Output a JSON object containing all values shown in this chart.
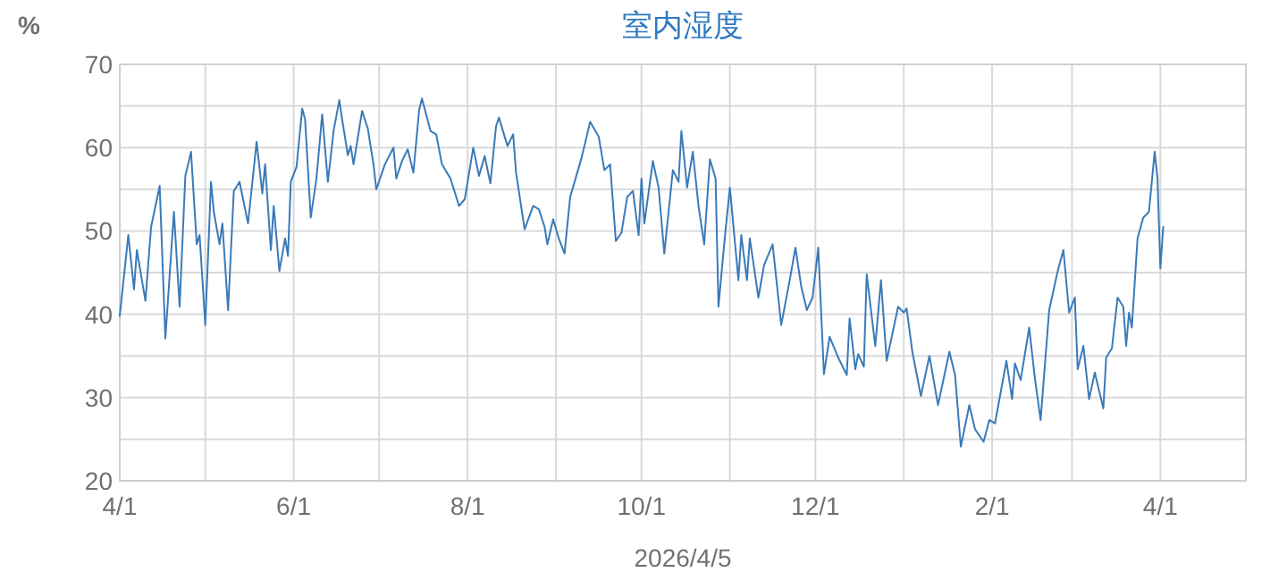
{
  "chart_data": {
    "type": "line",
    "title": "室内湿度",
    "ylabel": "%",
    "xlabel": "2026/4/5",
    "grid": true,
    "xlim": [
      "2025-04-01",
      "2026-05-01"
    ],
    "xticks": [
      {
        "value": "2025-04-01",
        "label": "4/1"
      },
      {
        "value": "2025-05-01",
        "label": null
      },
      {
        "value": "2025-06-01",
        "label": "6/1"
      },
      {
        "value": "2025-07-01",
        "label": null
      },
      {
        "value": "2025-08-01",
        "label": "8/1"
      },
      {
        "value": "2025-09-01",
        "label": null
      },
      {
        "value": "2025-10-01",
        "label": "10/1"
      },
      {
        "value": "2025-11-01",
        "label": null
      },
      {
        "value": "2025-12-01",
        "label": "12/1"
      },
      {
        "value": "2026-01-01",
        "label": null
      },
      {
        "value": "2026-02-01",
        "label": "2/1"
      },
      {
        "value": "2026-03-01",
        "label": null
      },
      {
        "value": "2026-04-01",
        "label": "4/1"
      },
      {
        "value": "2026-05-01",
        "label": null
      }
    ],
    "ylim": [
      20,
      70
    ],
    "yticks": [
      20,
      {
        "value": 25,
        "label": null
      },
      30,
      {
        "value": 35,
        "label": null
      },
      40,
      {
        "value": 45,
        "label": null
      },
      50,
      {
        "value": 55,
        "label": null
      },
      60,
      {
        "value": 65,
        "label": null
      },
      70
    ],
    "series": [
      {
        "color": "#3a7ab8",
        "x": [
          "2025-04-01",
          "2025-04-04",
          "2025-04-06",
          "2025-04-07",
          "2025-04-10",
          "2025-04-12",
          "2025-04-15",
          "2025-04-17",
          "2025-04-20",
          "2025-04-22",
          "2025-04-24",
          "2025-04-26",
          "2025-04-28",
          "2025-04-29",
          "2025-05-01",
          "2025-05-03",
          "2025-05-04",
          "2025-05-06",
          "2025-05-07",
          "2025-05-09",
          "2025-05-11",
          "2025-05-13",
          "2025-05-16",
          "2025-05-19",
          "2025-05-21",
          "2025-05-22",
          "2025-05-24",
          "2025-05-25",
          "2025-05-27",
          "2025-05-29",
          "2025-05-30",
          "2025-05-31",
          "2025-06-02",
          "2025-06-04",
          "2025-06-05",
          "2025-06-07",
          "2025-06-09",
          "2025-06-11",
          "2025-06-13",
          "2025-06-15",
          "2025-06-17",
          "2025-06-18",
          "2025-06-20",
          "2025-06-21",
          "2025-06-22",
          "2025-06-25",
          "2025-06-27",
          "2025-06-29",
          "2025-06-30",
          "2025-07-03",
          "2025-07-06",
          "2025-07-07",
          "2025-07-09",
          "2025-07-11",
          "2025-07-13",
          "2025-07-15",
          "2025-07-16",
          "2025-07-19",
          "2025-07-21",
          "2025-07-23",
          "2025-07-26",
          "2025-07-29",
          "2025-07-31",
          "2025-08-03",
          "2025-08-05",
          "2025-08-07",
          "2025-08-09",
          "2025-08-11",
          "2025-08-12",
          "2025-08-15",
          "2025-08-17",
          "2025-08-18",
          "2025-08-21",
          "2025-08-24",
          "2025-08-26",
          "2025-08-28",
          "2025-08-29",
          "2025-08-31",
          "2025-09-02",
          "2025-09-04",
          "2025-09-06",
          "2025-09-10",
          "2025-09-13",
          "2025-09-16",
          "2025-09-18",
          "2025-09-20",
          "2025-09-22",
          "2025-09-24",
          "2025-09-26",
          "2025-09-28",
          "2025-09-30",
          "2025-10-01",
          "2025-10-02",
          "2025-10-05",
          "2025-10-07",
          "2025-10-09",
          "2025-10-12",
          "2025-10-14",
          "2025-10-15",
          "2025-10-17",
          "2025-10-19",
          "2025-10-21",
          "2025-10-23",
          "2025-10-25",
          "2025-10-27",
          "2025-10-28",
          "2025-10-30",
          "2025-11-01",
          "2025-11-04",
          "2025-11-05",
          "2025-11-07",
          "2025-11-08",
          "2025-11-11",
          "2025-11-13",
          "2025-11-16",
          "2025-11-19",
          "2025-11-22",
          "2025-11-24",
          "2025-11-26",
          "2025-11-28",
          "2025-11-30",
          "2025-12-02",
          "2025-12-04",
          "2025-12-06",
          "2025-12-09",
          "2025-12-12",
          "2025-12-13",
          "2025-12-15",
          "2025-12-16",
          "2025-12-18",
          "2025-12-19",
          "2025-12-22",
          "2025-12-24",
          "2025-12-26",
          "2025-12-30",
          "2026-01-01",
          "2026-01-02",
          "2026-01-04",
          "2026-01-07",
          "2026-01-10",
          "2026-01-13",
          "2026-01-17",
          "2026-01-19",
          "2026-01-21",
          "2026-01-24",
          "2026-01-26",
          "2026-01-29",
          "2026-01-31",
          "2026-02-02",
          "2026-02-06",
          "2026-02-08",
          "2026-02-09",
          "2026-02-11",
          "2026-02-14",
          "2026-02-16",
          "2026-02-18",
          "2026-02-21",
          "2026-02-24",
          "2026-02-26",
          "2026-02-28",
          "2026-03-02",
          "2026-03-03",
          "2026-03-05",
          "2026-03-07",
          "2026-03-09",
          "2026-03-12",
          "2026-03-13",
          "2026-03-15",
          "2026-03-17",
          "2026-03-19",
          "2026-03-20",
          "2026-03-21",
          "2026-03-22",
          "2026-03-24",
          "2026-03-26",
          "2026-03-28",
          "2026-03-30",
          "2026-03-31",
          "2026-04-01",
          "2026-04-02"
        ],
        "values": [
          39.8,
          49.5,
          43.0,
          47.7,
          41.6,
          50.5,
          55.4,
          37.1,
          52.3,
          40.9,
          56.6,
          59.5,
          48.4,
          49.5,
          38.7,
          55.9,
          52.3,
          48.4,
          50.9,
          40.5,
          54.8,
          55.9,
          50.9,
          60.7,
          54.5,
          58.0,
          47.7,
          53.0,
          45.2,
          49.1,
          47.0,
          55.9,
          57.7,
          64.7,
          63.4,
          51.6,
          56.3,
          64.0,
          55.9,
          62.0,
          65.7,
          63.4,
          59.1,
          60.2,
          58.0,
          64.4,
          62.3,
          58.0,
          55.0,
          58.0,
          60.0,
          56.3,
          58.4,
          59.8,
          57.0,
          64.5,
          65.9,
          62.0,
          61.6,
          58.0,
          56.3,
          53.0,
          53.8,
          60.0,
          56.6,
          59.0,
          55.7,
          62.6,
          63.6,
          60.2,
          61.6,
          57.0,
          50.2,
          53.0,
          52.6,
          50.5,
          48.4,
          51.4,
          49.1,
          47.3,
          54.1,
          58.8,
          63.1,
          61.3,
          57.3,
          58.0,
          48.8,
          49.8,
          54.1,
          54.8,
          49.5,
          56.3,
          50.9,
          58.4,
          55.2,
          47.3,
          57.3,
          55.9,
          62.0,
          55.2,
          59.5,
          53.0,
          48.4,
          58.6,
          56.3,
          40.9,
          48.4,
          55.2,
          44.1,
          49.5,
          44.1,
          49.1,
          42.0,
          45.9,
          48.4,
          38.7,
          44.1,
          48.0,
          43.4,
          40.5,
          42.0,
          48.0,
          32.8,
          37.3,
          34.8,
          32.7,
          39.5,
          33.4,
          35.2,
          33.7,
          44.8,
          36.2,
          44.1,
          34.4,
          40.9,
          40.2,
          40.7,
          35.5,
          30.2,
          35.0,
          29.1,
          35.5,
          32.7,
          24.1,
          29.1,
          26.2,
          24.7,
          27.3,
          26.9,
          34.4,
          29.8,
          34.1,
          32.1,
          38.4,
          32.3,
          27.3,
          40.5,
          45.2,
          47.7,
          40.2,
          42.0,
          33.4,
          36.2,
          29.8,
          33.0,
          28.7,
          34.8,
          35.9,
          42.0,
          40.9,
          36.2,
          40.2,
          38.4,
          49.1,
          51.6,
          52.3,
          59.5,
          56.3,
          45.5,
          50.5
        ]
      }
    ]
  }
}
